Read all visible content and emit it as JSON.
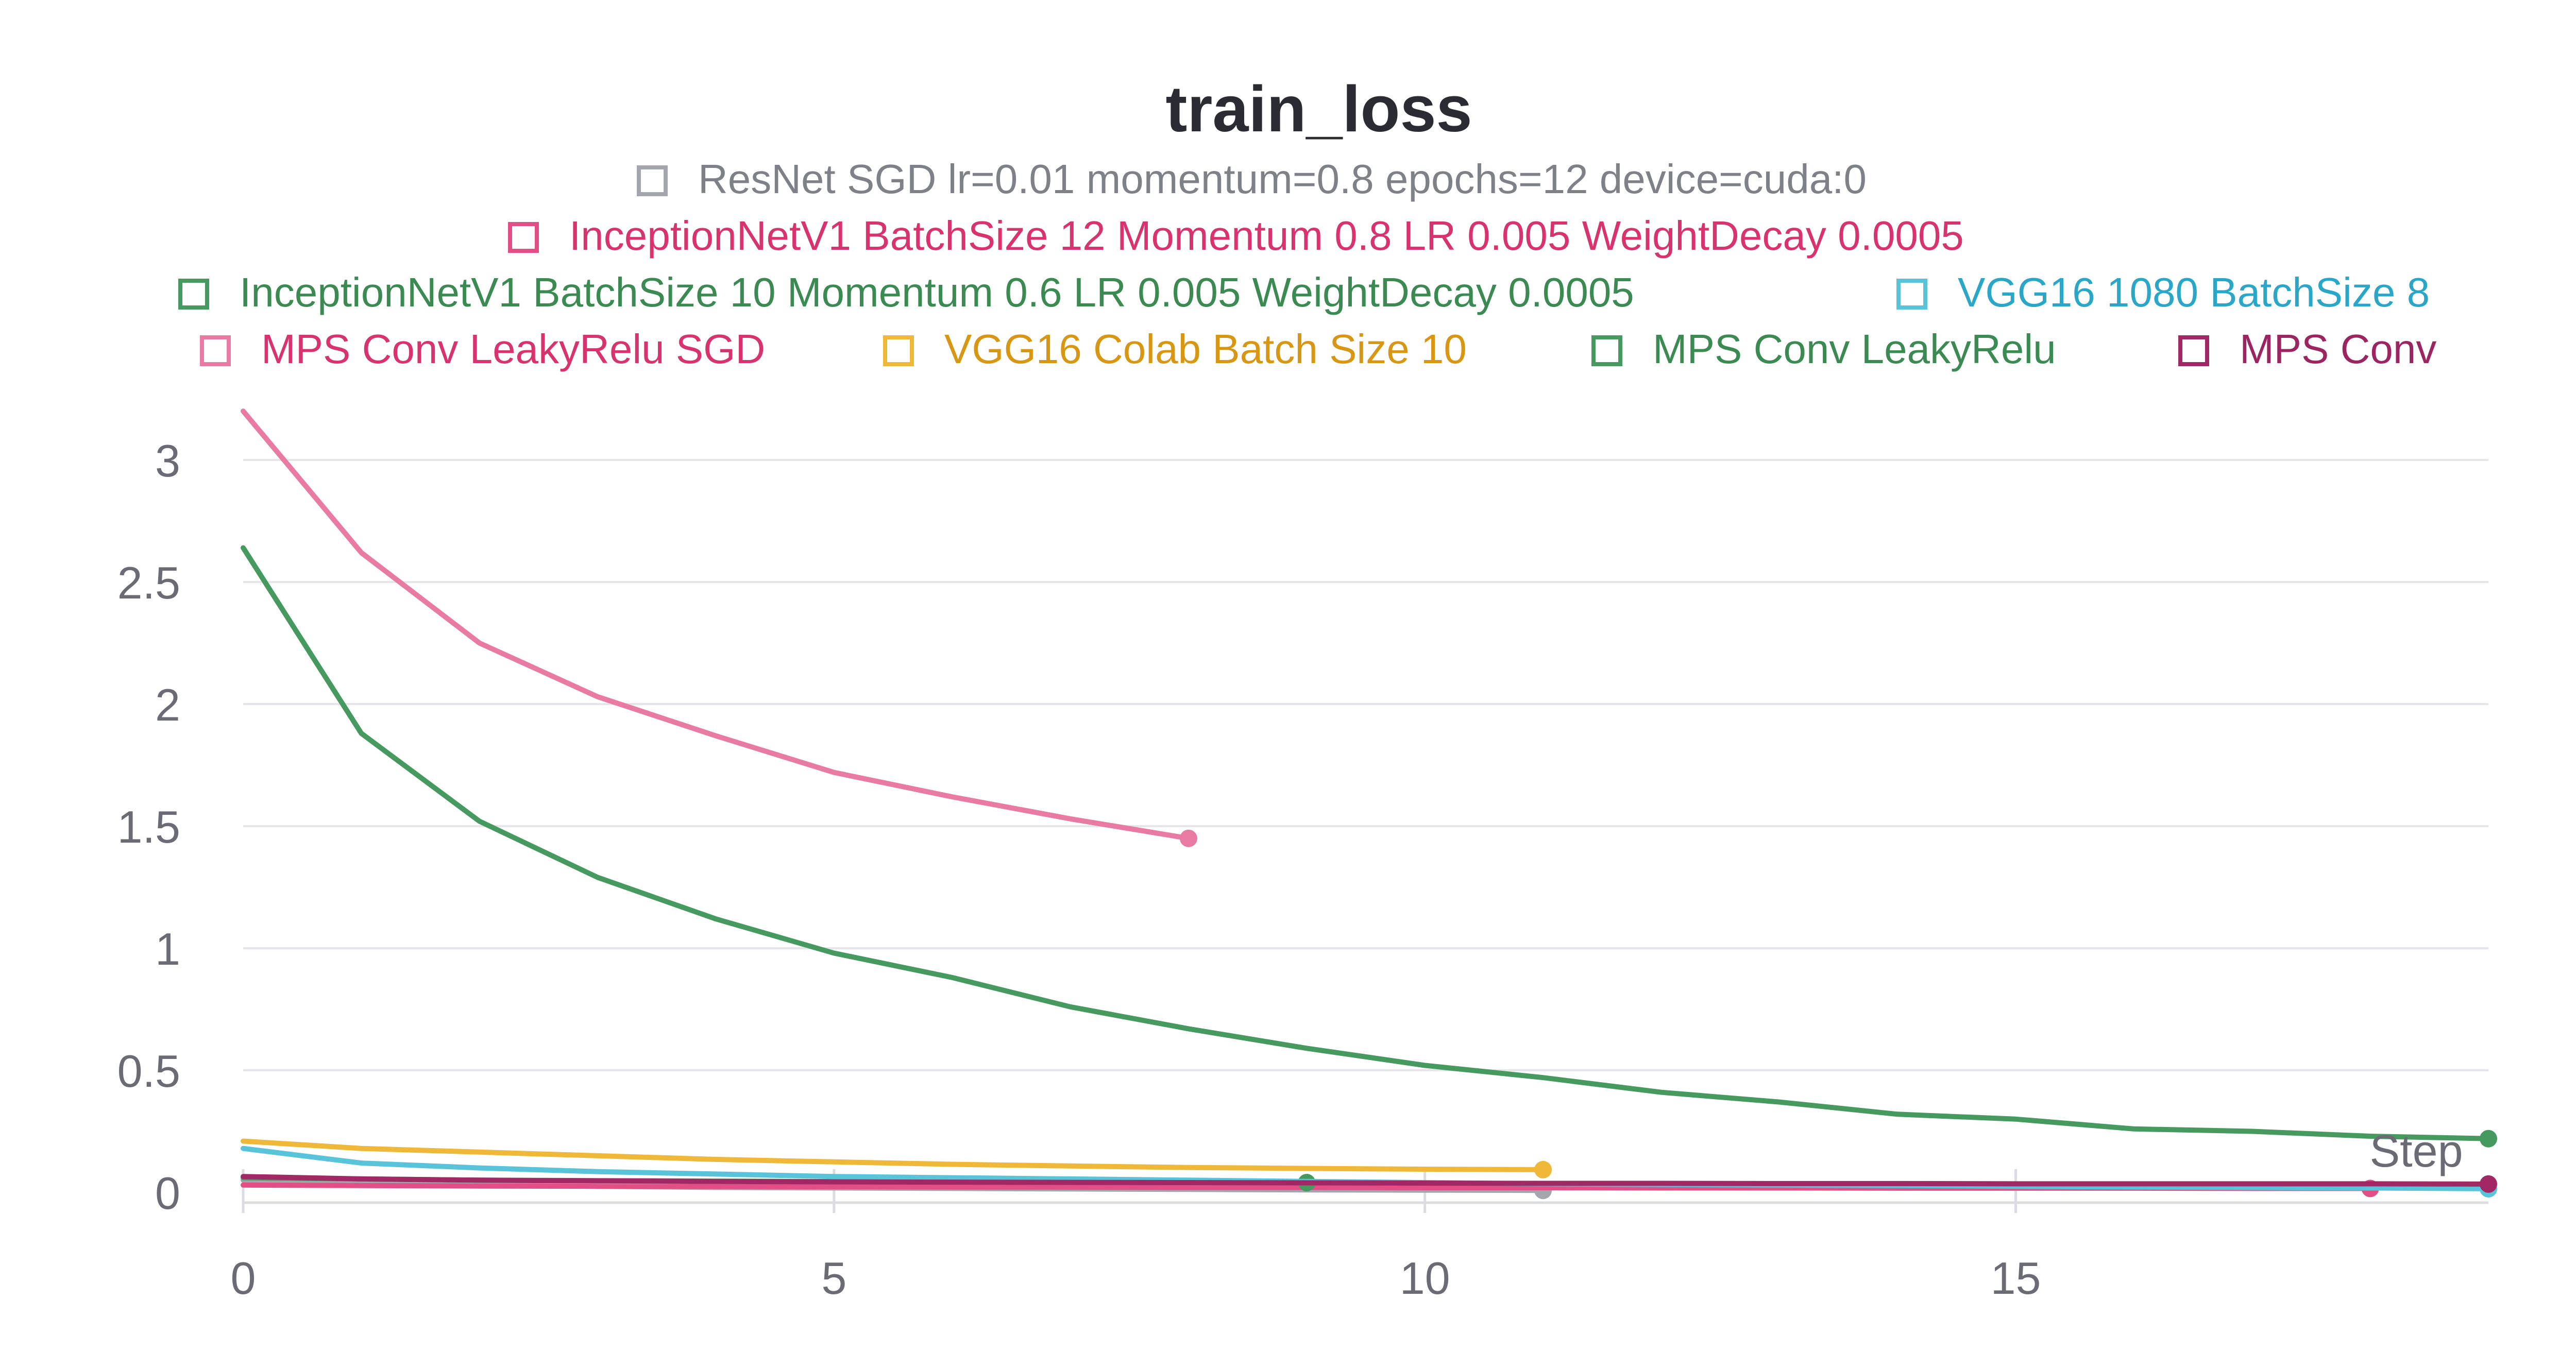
{
  "chart_data": {
    "type": "line",
    "title": "train_loss",
    "xlabel": "Step",
    "ylabel": "",
    "xlim": [
      0,
      19
    ],
    "ylim": [
      0,
      3.2
    ],
    "x_ticks": [
      0,
      5,
      10,
      15
    ],
    "y_ticks": [
      0,
      0.5,
      1,
      1.5,
      2,
      2.5,
      3
    ],
    "x_tick_labels": [
      "0",
      "5",
      "10",
      "15"
    ],
    "y_tick_labels": [
      "0",
      "0.5",
      "1",
      "1.5",
      "2",
      "2.5",
      "3"
    ],
    "grid": "horizontal",
    "legend_position": "top-center",
    "series": [
      {
        "name": "ResNet SGD lr=0.01 momentum=0.8 epochs=12 device=cuda:0",
        "color": "#a3a6ad",
        "x": [
          0,
          1,
          2,
          3,
          4,
          5,
          6,
          7,
          8,
          9,
          10,
          11
        ],
        "y": [
          0.05,
          0.035,
          0.03,
          0.025,
          0.02,
          0.018,
          0.016,
          0.014,
          0.012,
          0.01,
          0.009,
          0.008
        ]
      },
      {
        "name": "InceptionNetV1 BatchSize 12 Momentum 0.8 LR 0.005 WeightDecay 0.0005",
        "color": "#e44e86",
        "x": [
          0,
          1,
          2,
          3,
          4,
          5,
          6,
          7,
          8,
          9,
          10,
          11,
          12,
          13,
          14,
          15,
          16,
          17,
          18
        ],
        "y": [
          0.03,
          0.028,
          0.026,
          0.025,
          0.024,
          0.023,
          0.022,
          0.021,
          0.02,
          0.02,
          0.019,
          0.019,
          0.018,
          0.018,
          0.017,
          0.017,
          0.017,
          0.016,
          0.016
        ]
      },
      {
        "name": "InceptionNetV1 BatchSize 10 Momentum 0.6 LR 0.005 WeightDecay 0.0005",
        "color": "#479a5f",
        "x": [
          0,
          1,
          2,
          3,
          4,
          5,
          6,
          7,
          8,
          9
        ],
        "y": [
          0.06,
          0.055,
          0.05,
          0.048,
          0.046,
          0.044,
          0.043,
          0.042,
          0.041,
          0.04
        ]
      },
      {
        "name": "VGG16 1080 BatchSize 8",
        "color": "#58c3d9",
        "x": [
          0,
          1,
          2,
          3,
          4,
          5,
          6,
          7,
          8,
          9,
          10,
          11,
          12,
          13,
          14,
          15,
          16,
          17,
          18,
          19
        ],
        "y": [
          0.18,
          0.12,
          0.1,
          0.085,
          0.075,
          0.065,
          0.06,
          0.055,
          0.05,
          0.045,
          0.04,
          0.035,
          0.032,
          0.03,
          0.028,
          0.025,
          0.022,
          0.02,
          0.018,
          0.015
        ]
      },
      {
        "name": "MPS Conv LeakyRelu SGD",
        "color": "#e87aa4",
        "x": [
          0,
          1,
          2,
          3,
          4,
          5,
          6,
          7,
          8
        ],
        "y": [
          3.2,
          2.62,
          2.25,
          2.03,
          1.87,
          1.72,
          1.62,
          1.53,
          1.45
        ]
      },
      {
        "name": "VGG16 Colab Batch Size 10",
        "color": "#efb838",
        "x": [
          0,
          1,
          2,
          3,
          4,
          5,
          6,
          7,
          8,
          9,
          10,
          11
        ],
        "y": [
          0.21,
          0.18,
          0.165,
          0.15,
          0.135,
          0.125,
          0.115,
          0.108,
          0.102,
          0.098,
          0.095,
          0.093
        ]
      },
      {
        "name": "MPS Conv LeakyRelu",
        "color": "#479a5f",
        "x": [
          0,
          1,
          2,
          3,
          4,
          5,
          6,
          7,
          8,
          9,
          10,
          11,
          12,
          13,
          14,
          15,
          16,
          17,
          18,
          19
        ],
        "y": [
          2.64,
          1.88,
          1.52,
          1.29,
          1.12,
          0.98,
          0.88,
          0.76,
          0.67,
          0.59,
          0.52,
          0.47,
          0.41,
          0.37,
          0.32,
          0.3,
          0.26,
          0.25,
          0.23,
          0.22
        ]
      },
      {
        "name": "MPS Conv",
        "color": "#a12864",
        "x": [
          0,
          1,
          2,
          3,
          4,
          5,
          6,
          7,
          8,
          9,
          10,
          11,
          12,
          13,
          14,
          15,
          16,
          17,
          18,
          19
        ],
        "y": [
          0.065,
          0.055,
          0.05,
          0.047,
          0.045,
          0.043,
          0.042,
          0.041,
          0.04,
          0.039,
          0.038,
          0.037,
          0.037,
          0.036,
          0.036,
          0.035,
          0.035,
          0.035,
          0.035,
          0.034
        ]
      }
    ]
  }
}
